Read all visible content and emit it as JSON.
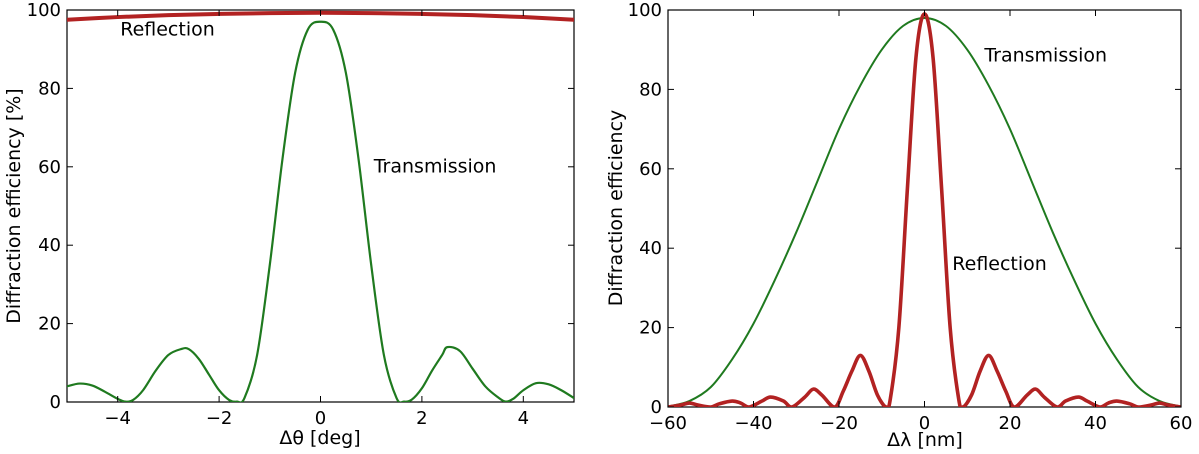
{
  "colors": {
    "transmission": "#1f7a1f",
    "reflection": "#b22222"
  },
  "chart_data": [
    {
      "type": "line",
      "xlabel": "Δθ [deg]",
      "ylabel": "Diffraction efficiency [%]",
      "xlim": [
        -5,
        5
      ],
      "ylim": [
        0,
        100
      ],
      "xticks": [
        "−4",
        "−2",
        "0",
        "2",
        "4"
      ],
      "xtick_values": [
        -4,
        -2,
        0,
        2,
        4
      ],
      "yticks": [
        "0",
        "20",
        "40",
        "60",
        "80",
        "100"
      ],
      "ytick_values": [
        0,
        20,
        40,
        60,
        80,
        100
      ],
      "grid": false,
      "series": [
        {
          "name": "Transmission",
          "x": [
            -5.0,
            -4.75,
            -4.5,
            -4.25,
            -4.0,
            -3.85,
            -3.7,
            -3.5,
            -3.25,
            -3.0,
            -2.75,
            -2.6,
            -2.4,
            -2.2,
            -2.0,
            -1.8,
            -1.65,
            -1.5,
            -1.25,
            -1.0,
            -0.75,
            -0.5,
            -0.25,
            0.0,
            0.25,
            0.5,
            0.75,
            1.0,
            1.25,
            1.5,
            1.65,
            1.8,
            2.0,
            2.2,
            2.4,
            2.5,
            2.75,
            3.0,
            3.25,
            3.5,
            3.65,
            3.8,
            4.0,
            4.25,
            4.5,
            4.75,
            5.0
          ],
          "y": [
            4,
            4.7,
            4.2,
            2.6,
            0.8,
            0.1,
            0.5,
            3,
            8,
            12,
            13.5,
            13.5,
            11,
            7,
            3,
            0.5,
            0.1,
            1,
            12,
            35,
            62,
            84,
            95,
            97,
            95,
            84,
            62,
            35,
            12,
            1,
            0.1,
            0.6,
            3.5,
            8,
            12,
            14,
            13,
            8.5,
            4,
            1.2,
            0.1,
            0.8,
            3,
            4.8,
            4.5,
            3,
            1
          ]
        },
        {
          "name": "Reflection",
          "x": [
            -5,
            -4,
            -3,
            -2,
            -1,
            0,
            1,
            2,
            3,
            4,
            5
          ],
          "y": [
            97.5,
            98.2,
            98.7,
            99.0,
            99.2,
            99.3,
            99.2,
            99.0,
            98.7,
            98.2,
            97.5
          ]
        }
      ],
      "annotations": [
        {
          "text": "Reflection",
          "x": -3.95,
          "y": 93.5
        },
        {
          "text": "Transmission",
          "x": 1.05,
          "y": 58.5
        }
      ]
    },
    {
      "type": "line",
      "xlabel": "Δλ [nm]",
      "ylabel": "Diffraction efficiency",
      "xlim": [
        -60,
        60
      ],
      "ylim": [
        0,
        100
      ],
      "xticks": [
        "−60",
        "−40",
        "−20",
        "0",
        "20",
        "40",
        "60"
      ],
      "xtick_values": [
        -60,
        -40,
        -20,
        0,
        20,
        40,
        60
      ],
      "yticks": [
        "0",
        "20",
        "40",
        "60",
        "80",
        "100"
      ],
      "ytick_values": [
        0,
        20,
        40,
        60,
        80,
        100
      ],
      "grid": false,
      "series": [
        {
          "name": "Transmission",
          "x": [
            -60,
            -55,
            -50,
            -45,
            -40,
            -35,
            -30,
            -25,
            -20,
            -15,
            -10,
            -5,
            0,
            5,
            10,
            15,
            20,
            25,
            30,
            35,
            40,
            45,
            50,
            55,
            60
          ],
          "y": [
            0.1,
            1.5,
            5,
            12,
            21,
            32,
            44,
            57,
            70,
            81,
            90,
            96,
            98,
            96,
            90,
            81,
            70,
            57,
            44,
            32,
            21,
            12,
            5,
            1.5,
            0.1
          ]
        },
        {
          "name": "Reflection",
          "x": [
            -60,
            -57,
            -55,
            -53,
            -50,
            -48,
            -45,
            -43,
            -41,
            -38,
            -36,
            -33,
            -31,
            -28,
            -26,
            -24,
            -21,
            -19,
            -17,
            -15,
            -13,
            -11,
            -9,
            -8,
            -6,
            -4,
            -2,
            0,
            2,
            4,
            6,
            8,
            9,
            11,
            13,
            15,
            17,
            19,
            21,
            24,
            26,
            28,
            31,
            33,
            36,
            38,
            41,
            43,
            45,
            48,
            50,
            53,
            55,
            57,
            60
          ],
          "y": [
            0,
            0.5,
            1,
            0.5,
            0,
            0.8,
            1.5,
            1,
            0,
            1.5,
            2.5,
            1.5,
            0,
            2.5,
            4.5,
            3,
            0,
            4,
            9,
            13,
            9,
            3,
            0,
            2,
            20,
            55,
            88,
            99,
            88,
            55,
            20,
            2,
            0,
            3,
            9,
            13,
            9,
            4,
            0,
            3,
            4.5,
            2.5,
            0,
            1.5,
            2.5,
            1.5,
            0,
            1,
            1.5,
            0.8,
            0,
            0.5,
            1,
            0.5,
            0
          ]
        }
      ],
      "annotations": [
        {
          "text": "Transmission",
          "x": 14,
          "y": 87
        },
        {
          "text": "Reflection",
          "x": 6.5,
          "y": 34.5
        }
      ]
    }
  ]
}
